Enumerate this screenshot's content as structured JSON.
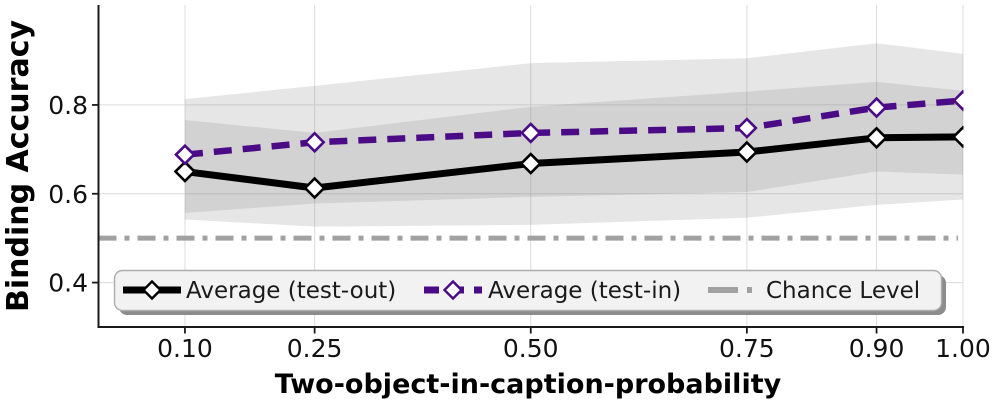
{
  "chart_data": {
    "type": "line",
    "title": "",
    "xlabel": "Two-object-in-caption-probability",
    "ylabel": "Binding Accuracy",
    "x": [
      0.1,
      0.25,
      0.5,
      0.75,
      0.9,
      1.0
    ],
    "xtick_labels": [
      "0.10",
      "0.25",
      "0.50",
      "0.75",
      "0.90",
      "1.00"
    ],
    "yticks": [
      0.4,
      0.6,
      0.8
    ],
    "ytick_labels": [
      "0.4",
      "0.6",
      "0.8"
    ],
    "xlim": [
      0.0,
      1.0
    ],
    "ylim": [
      0.3,
      1.025
    ],
    "grid": true,
    "legend_position": "lower center, horizontal, framed with shadow",
    "series": [
      {
        "name": "Average (test-out)",
        "color": "#000000",
        "style": "solid",
        "marker": "diamond",
        "values": [
          0.65,
          0.613,
          0.668,
          0.694,
          0.726,
          0.728
        ],
        "band_lower": [
          0.542,
          0.526,
          0.53,
          0.546,
          0.575,
          0.587
        ],
        "band_upper": [
          0.766,
          0.737,
          0.796,
          0.83,
          0.852,
          0.832
        ]
      },
      {
        "name": "Average (test-in)",
        "color": "#4B0B87",
        "style": "dashed",
        "marker": "diamond",
        "values": [
          0.688,
          0.716,
          0.737,
          0.748,
          0.794,
          0.81
        ],
        "band_lower": [
          0.557,
          0.578,
          0.593,
          0.604,
          0.65,
          0.643
        ],
        "band_upper": [
          0.813,
          0.843,
          0.894,
          0.905,
          0.939,
          0.915
        ]
      }
    ],
    "reference_line": {
      "name": "Chance Level",
      "value": 0.5,
      "color": "#a1a1a1",
      "style": "dash-dot"
    },
    "band_color": "#808080",
    "band_opacity": 0.2,
    "grid_color": "#dcdcdc",
    "spine_color": "#1a1a1a"
  }
}
